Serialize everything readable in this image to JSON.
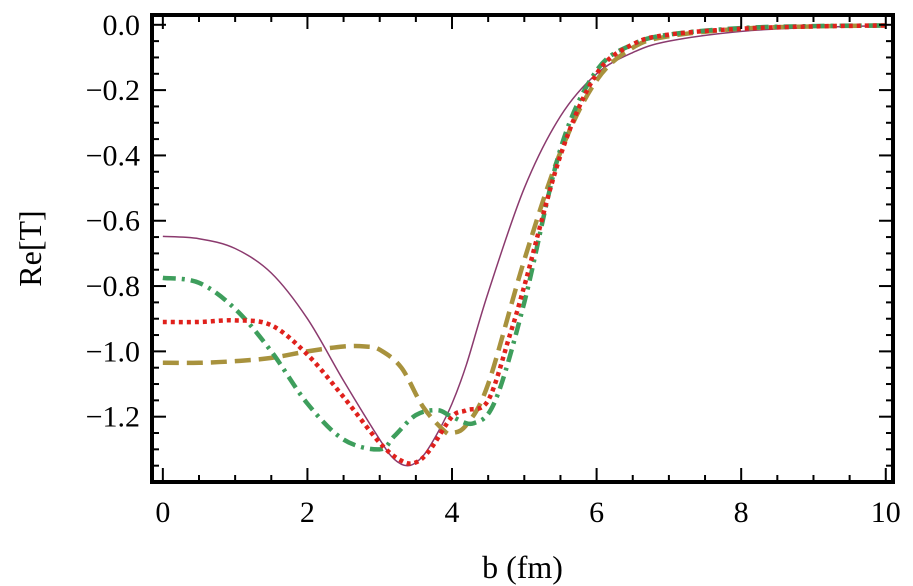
{
  "chart_data": {
    "type": "line",
    "title": "",
    "xlabel": "b (fm)",
    "ylabel": "Re[T]",
    "xlim": [
      -0.15,
      10.1
    ],
    "ylim": [
      -1.4,
      0.03
    ],
    "grid": false,
    "x_ticks": [
      0,
      2,
      4,
      6,
      8,
      10
    ],
    "x_tick_labels": [
      "0",
      "2",
      "4",
      "6",
      "8",
      "10"
    ],
    "y_ticks": [
      0.0,
      -0.2,
      -0.4,
      -0.6,
      -0.8,
      -1.0,
      -1.2
    ],
    "y_tick_labels": [
      "0.0",
      "−0.2",
      "−0.4",
      "−0.6",
      "−0.8",
      "−1.0",
      "−1.2"
    ],
    "series": [
      {
        "style": "solid-thin",
        "color": "#8B3A6E",
        "x": [
          0,
          0.5,
          1.0,
          1.5,
          2.0,
          2.5,
          3.0,
          3.2,
          3.4,
          3.6,
          3.8,
          4.0,
          4.2,
          4.5,
          5.0,
          5.5,
          6.0,
          6.5,
          7.0,
          8.0,
          9.0,
          10.0
        ],
        "y": [
          -0.648,
          -0.655,
          -0.685,
          -0.76,
          -0.9,
          -1.09,
          -1.27,
          -1.33,
          -1.35,
          -1.32,
          -1.25,
          -1.16,
          -1.04,
          -0.82,
          -0.5,
          -0.28,
          -0.15,
          -0.085,
          -0.05,
          -0.02,
          -0.008,
          -0.003
        ]
      },
      {
        "style": "dashed",
        "color": "#A8923D",
        "x": [
          0,
          0.5,
          1.0,
          1.5,
          2.0,
          2.5,
          2.8,
          3.0,
          3.3,
          3.6,
          3.9,
          4.0,
          4.2,
          4.5,
          5.0,
          5.5,
          6.0,
          6.5,
          7.0,
          8.0,
          9.0,
          10.0
        ],
        "y": [
          -1.035,
          -1.035,
          -1.03,
          -1.02,
          -1.0,
          -0.985,
          -0.985,
          -0.995,
          -1.05,
          -1.17,
          -1.245,
          -1.25,
          -1.225,
          -1.1,
          -0.72,
          -0.39,
          -0.17,
          -0.07,
          -0.035,
          -0.012,
          -0.005,
          -0.002
        ]
      },
      {
        "style": "dash-dot",
        "color": "#3E9E5C",
        "x": [
          0,
          0.5,
          1.0,
          1.5,
          2.0,
          2.5,
          3.0,
          3.2,
          3.5,
          3.8,
          4.0,
          4.3,
          4.6,
          5.0,
          5.5,
          6.0,
          6.5,
          7.0,
          8.0,
          9.0,
          10.0
        ],
        "y": [
          -0.775,
          -0.79,
          -0.87,
          -1.0,
          -1.16,
          -1.27,
          -1.3,
          -1.26,
          -1.195,
          -1.18,
          -1.2,
          -1.22,
          -1.15,
          -0.85,
          -0.38,
          -0.14,
          -0.06,
          -0.03,
          -0.01,
          -0.004,
          -0.002
        ]
      },
      {
        "style": "dotted",
        "color": "#E0211C",
        "x": [
          0,
          0.5,
          1.0,
          1.5,
          2.0,
          2.5,
          3.0,
          3.3,
          3.5,
          3.7,
          4.0,
          4.2,
          4.5,
          4.8,
          5.0,
          5.5,
          6.0,
          6.5,
          7.0,
          8.0,
          9.0,
          10.0
        ],
        "y": [
          -0.91,
          -0.91,
          -0.905,
          -0.92,
          -1.01,
          -1.14,
          -1.28,
          -1.335,
          -1.34,
          -1.3,
          -1.2,
          -1.18,
          -1.15,
          -0.95,
          -0.8,
          -0.4,
          -0.15,
          -0.06,
          -0.03,
          -0.012,
          -0.005,
          -0.002
        ]
      }
    ]
  }
}
